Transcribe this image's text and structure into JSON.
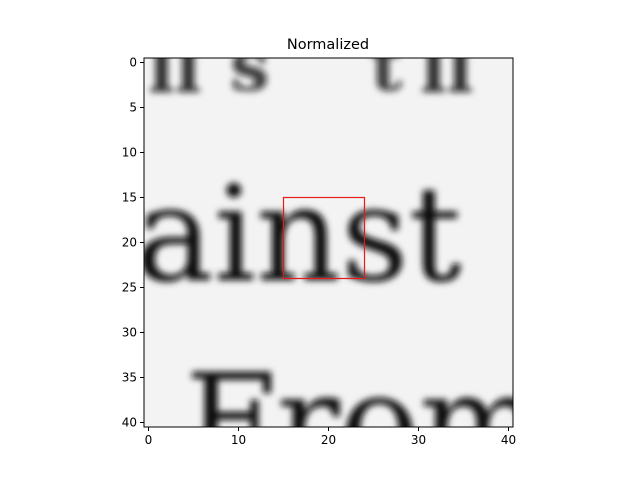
{
  "chart_data": {
    "type": "heatmap",
    "title": "Normalized",
    "xlabel": "",
    "ylabel": "",
    "colormap": "gray",
    "grid": false,
    "xlim": [
      -0.5,
      40.5
    ],
    "ylim": [
      40.5,
      -0.5
    ],
    "x_ticks": [
      0,
      10,
      20,
      30,
      40
    ],
    "y_ticks": [
      0,
      5,
      10,
      15,
      20,
      25,
      30,
      35,
      40
    ],
    "grid_size": [
      41,
      41
    ],
    "image_content": "grayscale crop of printed text showing the fragment 'ainst' with partial letters above and 'from' below",
    "highlight_box": {
      "x0": 15.0,
      "y0": 15.0,
      "x1": 24.0,
      "y1": 24.0,
      "color": "#e41a1c"
    }
  }
}
